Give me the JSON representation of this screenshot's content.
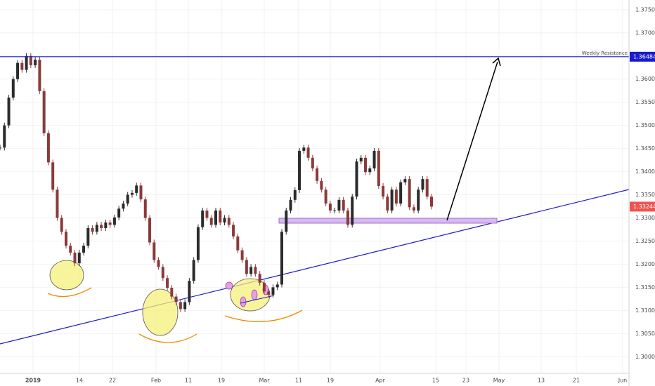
{
  "chart_data": {
    "type": "candlestick",
    "series": [
      {
        "values": [
          1.3452,
          1.35,
          1.356,
          1.36,
          1.3635,
          1.362,
          1.365,
          1.363,
          1.3642,
          1.3574,
          1.3483,
          1.342,
          1.3361,
          1.33,
          1.327,
          1.324,
          1.3225,
          1.3202,
          1.3225,
          1.324,
          1.3278,
          1.327,
          1.3285,
          1.3278,
          1.329,
          1.3285,
          1.3301,
          1.332,
          1.3331,
          1.335,
          1.3354,
          1.337,
          1.334,
          1.33,
          1.3247,
          1.3209,
          1.3194,
          1.317,
          1.3149,
          1.313,
          1.3118,
          1.3103,
          1.3118,
          1.3164,
          1.3209,
          1.328,
          1.3316,
          1.33,
          1.3285,
          1.3316,
          1.329,
          1.33,
          1.3285,
          1.326,
          1.323,
          1.3209,
          1.3179,
          1.3194,
          1.3179,
          1.316,
          1.3141,
          1.3134,
          1.315,
          1.3156,
          1.327,
          1.3316,
          1.3339,
          1.336,
          1.3445,
          1.3452,
          1.343,
          1.3407,
          1.338,
          1.3361,
          1.3331,
          1.3316,
          1.3316,
          1.3339,
          1.3316,
          1.3285,
          1.3346,
          1.3422,
          1.343,
          1.3399,
          1.3407,
          1.3445,
          1.3369,
          1.3346,
          1.3316,
          1.3361,
          1.3331,
          1.3377,
          1.3384,
          1.3323,
          1.3316,
          1.3361,
          1.3384,
          1.3346,
          1.33244
        ],
        "up_color": "#2b2b2b",
        "down_color": "#8b3a3a",
        "tag_color": "#ef5350"
      }
    ],
    "ylim": [
      1.2964,
      1.3771
    ],
    "yticks": [
      {
        "value": 1.375,
        "label": "1.37500"
      },
      {
        "value": 1.37,
        "label": "1.37000"
      },
      {
        "value": 1.365,
        "label": "1.36500"
      },
      {
        "value": 1.36,
        "label": "1.36000"
      },
      {
        "value": 1.355,
        "label": "1.35500"
      },
      {
        "value": 1.35,
        "label": "1.35000"
      },
      {
        "value": 1.345,
        "label": "1.34500"
      },
      {
        "value": 1.34,
        "label": "1.34000"
      },
      {
        "value": 1.335,
        "label": "1.33500"
      },
      {
        "value": 1.33,
        "label": "1.33000"
      },
      {
        "value": 1.325,
        "label": "1.32500"
      },
      {
        "value": 1.32,
        "label": "1.32000"
      },
      {
        "value": 1.315,
        "label": "1.31500"
      },
      {
        "value": 1.31,
        "label": "1.31000"
      },
      {
        "value": 1.305,
        "label": "1.30500"
      },
      {
        "value": 1.3,
        "label": "1.30000"
      }
    ],
    "xticks": [
      "2019",
      "14",
      "22",
      "Feb",
      "11",
      "19",
      "Mar",
      "11",
      "19",
      "Apr",
      "15",
      "23",
      "May",
      "13",
      "21",
      "Jun"
    ],
    "grid": true,
    "resistance": {
      "label": "Weekly Resistance",
      "value": 1.36484,
      "color": "#1a1acd"
    }
  }
}
